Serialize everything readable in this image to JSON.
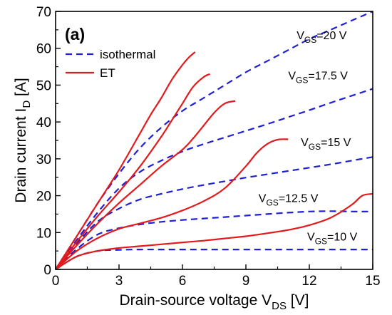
{
  "chart_data": {
    "type": "line",
    "panel_label": "(a)",
    "xlabel": {
      "main": "Drain-source voltage V",
      "sub": "DS",
      "unit": " [V]"
    },
    "ylabel": {
      "main": "Drain current I",
      "sub": "D",
      "unit": " [A]"
    },
    "xlim": [
      0,
      15
    ],
    "ylim": [
      0,
      70
    ],
    "x_ticks": [
      0,
      3,
      6,
      9,
      12,
      15
    ],
    "y_ticks": [
      0,
      10,
      20,
      30,
      40,
      50,
      60,
      70
    ],
    "grid": false,
    "legend_position": "top-left",
    "legend": [
      {
        "label": "isothermal",
        "style": "dashed",
        "color": "#1f1fd6"
      },
      {
        "label": "ET",
        "style": "solid",
        "color": "#e31a1c"
      }
    ],
    "annotations": [
      {
        "prefix": "V",
        "sub": "GS",
        "suffix": "=20 V",
        "x": 11.4,
        "y": 62.5
      },
      {
        "prefix": "V",
        "sub": "GS",
        "suffix": "=17.5 V",
        "x": 11.0,
        "y": 51.5
      },
      {
        "prefix": "V",
        "sub": "GS",
        "suffix": "=15 V",
        "x": 11.6,
        "y": 33.5
      },
      {
        "prefix": "V",
        "sub": "GS",
        "suffix": "=12.5 V",
        "x": 9.6,
        "y": 18.3
      },
      {
        "prefix": "V",
        "sub": "GS",
        "suffix": "=10 V",
        "x": 11.9,
        "y": 7.8
      }
    ],
    "series": [
      {
        "group": "isothermal",
        "vgs": "20 V",
        "style": "dashed",
        "color": "#1f1fd6",
        "x": [
          0,
          1,
          2,
          3,
          4,
          5,
          6,
          7,
          8,
          9,
          10,
          11,
          12,
          13,
          14,
          15
        ],
        "y": [
          0,
          9,
          18,
          26,
          33,
          38.5,
          43,
          46.5,
          50,
          53.5,
          56.5,
          59.5,
          62.5,
          65,
          67.5,
          70
        ]
      },
      {
        "group": "isothermal",
        "vgs": "17.5 V",
        "style": "dashed",
        "color": "#1f1fd6",
        "x": [
          0,
          1,
          2,
          3,
          4,
          5,
          6,
          7,
          8,
          9,
          10,
          11,
          12,
          13,
          14,
          15
        ],
        "y": [
          0,
          8,
          15.5,
          22,
          26.5,
          29.5,
          32,
          34,
          35.8,
          37.6,
          39.4,
          41.3,
          43.2,
          45.2,
          47.1,
          49
        ]
      },
      {
        "group": "isothermal",
        "vgs": "15 V",
        "style": "dashed",
        "color": "#1f1fd6",
        "x": [
          0,
          1,
          2,
          3,
          4,
          5,
          6,
          7,
          8,
          9,
          10,
          11,
          12,
          13,
          14,
          15
        ],
        "y": [
          0,
          7,
          13,
          16.5,
          19,
          20.5,
          21.8,
          22.9,
          23.9,
          24.9,
          25.8,
          26.7,
          27.6,
          28.5,
          29.5,
          30.5
        ]
      },
      {
        "group": "isothermal",
        "vgs": "12.5 V",
        "style": "dashed",
        "color": "#1f1fd6",
        "x": [
          0,
          1,
          2,
          3,
          4,
          5,
          6,
          7,
          8,
          9,
          10,
          11,
          12,
          13,
          14,
          15
        ],
        "y": [
          0,
          5.5,
          9.5,
          11.2,
          12.2,
          12.9,
          13.4,
          13.8,
          14.2,
          14.6,
          15,
          15.4,
          15.7,
          15.8,
          15.7,
          15.7
        ]
      },
      {
        "group": "isothermal",
        "vgs": "10 V",
        "style": "dashed",
        "color": "#1f1fd6",
        "x": [
          0,
          1,
          2,
          3,
          4,
          5,
          6,
          7,
          8,
          9,
          10,
          11,
          12,
          13,
          14,
          15
        ],
        "y": [
          0,
          3.5,
          5,
          5.3,
          5.4,
          5.4,
          5.4,
          5.4,
          5.4,
          5.4,
          5.4,
          5.4,
          5.4,
          5.4,
          5.4,
          5.4
        ]
      },
      {
        "group": "ET",
        "vgs": "20 V",
        "style": "solid",
        "color": "#e31a1c",
        "x": [
          0,
          1,
          2,
          3,
          4,
          4.5,
          5,
          5.5,
          6,
          6.3,
          6.6
        ],
        "y": [
          0,
          9,
          18,
          27,
          37,
          42,
          46.5,
          51.5,
          55.5,
          57.5,
          59
        ]
      },
      {
        "group": "ET",
        "vgs": "17.5 V",
        "style": "solid",
        "color": "#e31a1c",
        "x": [
          0,
          1,
          2,
          3,
          4,
          5,
          5.5,
          6,
          6.5,
          7,
          7.3
        ],
        "y": [
          0,
          7.5,
          14.5,
          21,
          28,
          36,
          40.5,
          45,
          49.5,
          52.2,
          53
        ]
      },
      {
        "group": "ET",
        "vgs": "15 V",
        "style": "solid",
        "color": "#e31a1c",
        "x": [
          0,
          1,
          2,
          3,
          4,
          5,
          6,
          6.5,
          7,
          7.5,
          8,
          8.5
        ],
        "y": [
          0,
          6.5,
          12.5,
          18,
          23,
          28,
          32.5,
          35.5,
          39,
          42.5,
          45,
          45.7
        ]
      },
      {
        "group": "ET",
        "vgs": "12.5 V",
        "style": "solid",
        "color": "#e31a1c",
        "x": [
          0,
          1,
          2,
          3,
          4,
          5,
          6,
          7,
          8,
          9,
          9.5,
          10,
          10.5,
          11
        ],
        "y": [
          0,
          5,
          8.5,
          11,
          12.5,
          14,
          16,
          18.5,
          22,
          28,
          31.5,
          34,
          35.2,
          35.3
        ]
      },
      {
        "group": "ET",
        "vgs": "10 V",
        "style": "solid",
        "color": "#e31a1c",
        "x": [
          0,
          1,
          2,
          3,
          4,
          5,
          6,
          7,
          8,
          9,
          10,
          11,
          12,
          13,
          14,
          14.5,
          15
        ],
        "y": [
          0,
          3.5,
          5,
          5.8,
          6.3,
          6.8,
          7.3,
          7.8,
          8.4,
          9,
          9.8,
          10.7,
          12,
          14,
          17.5,
          20,
          20.5
        ]
      }
    ]
  }
}
